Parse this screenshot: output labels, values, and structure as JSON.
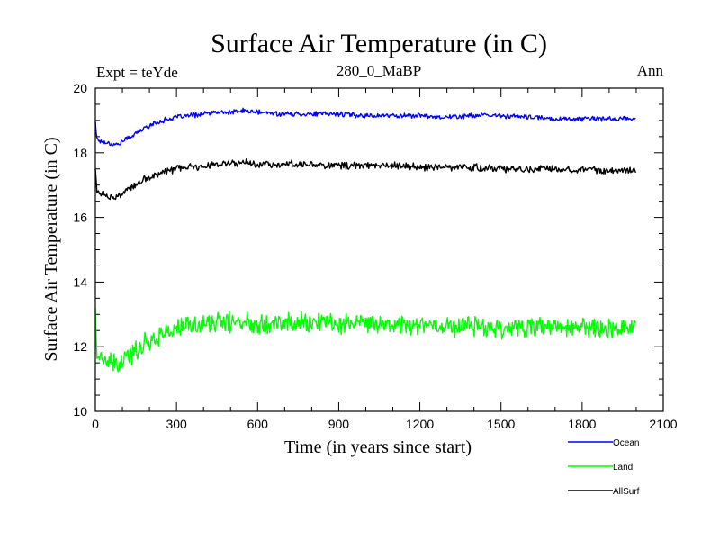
{
  "chart_data": {
    "type": "line",
    "title": "Surface Air Temperature (in C)",
    "subtitle_left": "Expt = teYde",
    "subtitle_center": "280_0_MaBP",
    "subtitle_right": "Ann",
    "xlabel": "Time (in years since start)",
    "ylabel": "Surface Air Temperature (in C)",
    "xlim": [
      0,
      2100
    ],
    "ylim": [
      10,
      20
    ],
    "xticks": [
      0,
      300,
      600,
      900,
      1200,
      1500,
      1800,
      2100
    ],
    "yticks": [
      10,
      12,
      14,
      16,
      18,
      20
    ],
    "legend_position": "bottom-right",
    "series": [
      {
        "name": "Ocean",
        "color": "#0000ff",
        "x": [
          0,
          5,
          20,
          50,
          80,
          100,
          150,
          200,
          250,
          300,
          350,
          400,
          450,
          500,
          550,
          600,
          700,
          800,
          900,
          1000,
          1100,
          1200,
          1300,
          1400,
          1500,
          1600,
          1700,
          1800,
          1900,
          2000
        ],
        "values": [
          18.95,
          18.45,
          18.35,
          18.3,
          18.25,
          18.35,
          18.6,
          18.85,
          19.0,
          19.1,
          19.15,
          19.2,
          19.25,
          19.25,
          19.3,
          19.25,
          19.2,
          19.2,
          19.2,
          19.15,
          19.15,
          19.15,
          19.1,
          19.15,
          19.15,
          19.1,
          19.05,
          19.05,
          19.05,
          19.05
        ],
        "noise": 0.06
      },
      {
        "name": "Land",
        "color": "#00ff00",
        "x": [
          0,
          5,
          20,
          50,
          80,
          100,
          150,
          200,
          250,
          300,
          350,
          400,
          450,
          500,
          550,
          600,
          700,
          800,
          900,
          1000,
          1100,
          1200,
          1300,
          1400,
          1500,
          1600,
          1700,
          1800,
          1900,
          2000
        ],
        "values": [
          13.2,
          11.8,
          11.6,
          11.5,
          11.4,
          11.5,
          11.9,
          12.2,
          12.4,
          12.55,
          12.65,
          12.7,
          12.75,
          12.75,
          12.75,
          12.75,
          12.75,
          12.75,
          12.75,
          12.7,
          12.7,
          12.7,
          12.65,
          12.65,
          12.6,
          12.6,
          12.6,
          12.6,
          12.6,
          12.6
        ],
        "noise": 0.25
      },
      {
        "name": "AllSurf",
        "color": "#000000",
        "x": [
          0,
          5,
          20,
          50,
          80,
          100,
          150,
          200,
          250,
          300,
          350,
          400,
          450,
          500,
          550,
          600,
          700,
          800,
          900,
          1000,
          1100,
          1200,
          1300,
          1400,
          1500,
          1600,
          1700,
          1800,
          1900,
          2000
        ],
        "values": [
          17.5,
          16.8,
          16.75,
          16.65,
          16.6,
          16.75,
          17.0,
          17.25,
          17.4,
          17.5,
          17.55,
          17.6,
          17.65,
          17.65,
          17.7,
          17.65,
          17.65,
          17.65,
          17.6,
          17.6,
          17.6,
          17.55,
          17.55,
          17.55,
          17.5,
          17.5,
          17.5,
          17.5,
          17.45,
          17.5
        ],
        "noise": 0.09
      }
    ]
  }
}
